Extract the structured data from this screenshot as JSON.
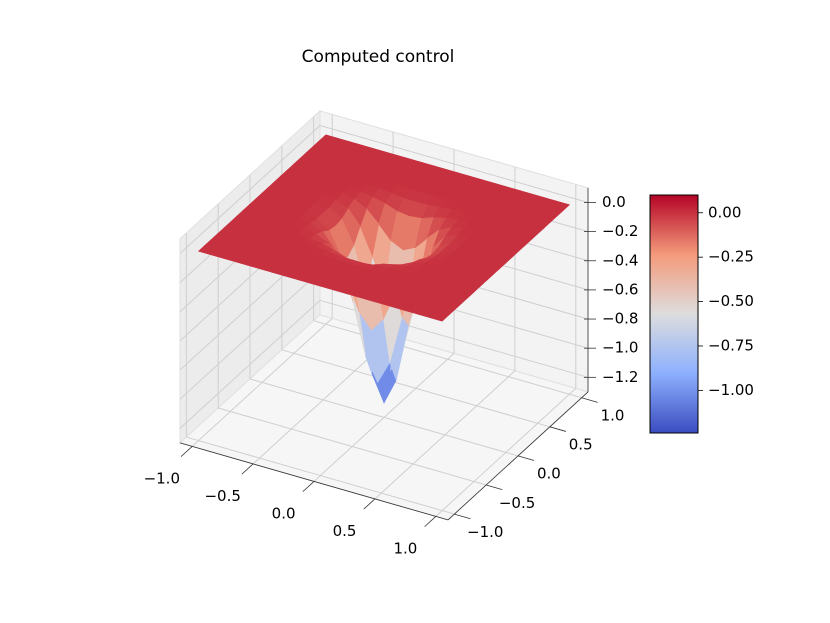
{
  "chart_data": {
    "type": "surface",
    "title": "Computed control",
    "colormap": "coolwarm",
    "grid": true,
    "x": [
      -1,
      -0.9,
      -0.8,
      -0.7,
      -0.6,
      -0.5,
      -0.4,
      -0.3,
      -0.2,
      -0.1,
      0,
      0.1,
      0.2,
      0.3,
      0.4,
      0.5,
      0.6,
      0.7,
      0.8,
      0.9,
      1
    ],
    "y": [
      -1,
      -0.9,
      -0.8,
      -0.7,
      -0.6,
      -0.5,
      -0.4,
      -0.3,
      -0.2,
      -0.1,
      0,
      0.1,
      0.2,
      0.3,
      0.4,
      0.5,
      0.6,
      0.7,
      0.8,
      0.9,
      1
    ],
    "z": [
      [
        0,
        0,
        0,
        0,
        0,
        0,
        0,
        0,
        0,
        0,
        0,
        0,
        0,
        0,
        0,
        0,
        0,
        0,
        0,
        0,
        0
      ],
      [
        0,
        0,
        0,
        0,
        0,
        0,
        0,
        0,
        0,
        0,
        0,
        0,
        0,
        0,
        0,
        0,
        0,
        0,
        0,
        0,
        0
      ],
      [
        0,
        0,
        0,
        0,
        0,
        0,
        0,
        0,
        0,
        0,
        0,
        0,
        0,
        0,
        0,
        0,
        0,
        0,
        0,
        0,
        0
      ],
      [
        0,
        0,
        0,
        0,
        0,
        0,
        0,
        0,
        0,
        0,
        0,
        0,
        0,
        0,
        0,
        0,
        0,
        0,
        0,
        0,
        0
      ],
      [
        0,
        0,
        0,
        0,
        0,
        0,
        0,
        0,
        0,
        0,
        0,
        0,
        0,
        0,
        0,
        0,
        0,
        0,
        0,
        0,
        0
      ],
      [
        0,
        0,
        0,
        0,
        0,
        0,
        0,
        0,
        -0.01,
        -0.02,
        -0.02,
        -0.02,
        -0.01,
        0,
        0,
        0,
        0,
        0,
        0,
        0,
        0
      ],
      [
        0,
        0,
        0,
        0,
        0,
        0,
        -0.01,
        -0.02,
        -0.04,
        -0.07,
        -0.08,
        -0.07,
        -0.04,
        -0.02,
        -0.01,
        0,
        0,
        0,
        0,
        0,
        0
      ],
      [
        0,
        0,
        0,
        0,
        0,
        0,
        -0.02,
        -0.06,
        -0.14,
        -0.23,
        -0.27,
        -0.23,
        -0.14,
        -0.06,
        -0.02,
        0,
        0,
        0,
        0,
        0,
        0
      ],
      [
        0,
        0,
        0,
        0,
        0,
        -0.01,
        -0.04,
        -0.14,
        -0.32,
        -0.52,
        -0.62,
        -0.52,
        -0.32,
        -0.14,
        -0.04,
        -0.01,
        0,
        0,
        0,
        0,
        0
      ],
      [
        0,
        0,
        0,
        0,
        0,
        -0.02,
        -0.07,
        -0.23,
        -0.52,
        -0.86,
        -1.02,
        -0.86,
        -0.52,
        -0.23,
        -0.07,
        -0.02,
        0,
        0,
        0,
        0,
        0
      ],
      [
        0,
        0,
        0,
        0,
        0,
        -0.02,
        -0.08,
        -0.27,
        -0.62,
        -1.02,
        -1.2,
        -1.02,
        -0.62,
        -0.27,
        -0.08,
        -0.02,
        0,
        0,
        0,
        0,
        0
      ],
      [
        0,
        0,
        0,
        0,
        0,
        -0.02,
        -0.07,
        -0.23,
        -0.52,
        -0.86,
        -1.02,
        -0.86,
        -0.52,
        -0.23,
        -0.07,
        -0.02,
        0,
        0,
        0,
        0,
        0
      ],
      [
        0,
        0,
        0,
        0,
        0,
        -0.01,
        -0.04,
        -0.14,
        -0.32,
        -0.52,
        -0.62,
        -0.52,
        -0.32,
        -0.14,
        -0.04,
        -0.01,
        0,
        0,
        0,
        0,
        0
      ],
      [
        0,
        0,
        0,
        0,
        0,
        0,
        -0.02,
        -0.06,
        -0.14,
        -0.23,
        -0.27,
        -0.23,
        -0.14,
        -0.06,
        -0.02,
        0,
        0,
        0,
        0,
        0,
        0
      ],
      [
        0,
        0,
        0,
        0,
        0,
        0,
        -0.01,
        -0.02,
        -0.04,
        -0.07,
        -0.08,
        -0.07,
        -0.04,
        -0.02,
        -0.01,
        0,
        0,
        0,
        0,
        0,
        0
      ],
      [
        0,
        0,
        0,
        0,
        0,
        0,
        0,
        0,
        -0.01,
        -0.02,
        -0.02,
        -0.02,
        -0.01,
        0,
        0,
        0,
        0,
        0,
        0,
        0,
        0
      ],
      [
        0,
        0,
        0,
        0,
        0,
        0,
        0,
        0,
        0,
        0,
        0,
        0,
        0,
        0,
        0,
        0,
        0,
        0,
        0,
        0,
        0
      ],
      [
        0,
        0,
        0,
        0,
        0,
        0,
        0,
        0,
        0,
        0,
        0,
        0,
        0,
        0,
        0,
        0,
        0,
        0,
        0,
        0,
        0
      ],
      [
        0,
        0,
        0,
        0,
        0,
        0,
        0,
        0,
        0,
        0,
        0,
        0,
        0,
        0,
        0,
        0,
        0,
        0,
        0,
        0,
        0
      ],
      [
        0,
        0,
        0,
        0,
        0,
        0,
        0,
        0,
        0,
        0,
        0,
        0,
        0,
        0,
        0,
        0,
        0,
        0,
        0,
        0,
        0
      ],
      [
        0,
        0,
        0,
        0,
        0,
        0,
        0,
        0,
        0,
        0,
        0,
        0,
        0,
        0,
        0,
        0,
        0,
        0,
        0,
        0,
        0
      ]
    ],
    "xlim": [
      -1.1,
      1.1
    ],
    "ylim": [
      -1.1,
      1.1
    ],
    "zlim": [
      -1.3,
      0.1
    ],
    "xticks": [
      {
        "value": -1,
        "label": "−1.0"
      },
      {
        "value": -0.5,
        "label": "−0.5"
      },
      {
        "value": 0,
        "label": "0.0"
      },
      0.5,
      {
        "value": 1,
        "label": "1.0"
      }
    ],
    "yticks": [
      {
        "value": -1,
        "label": "−1.0"
      },
      {
        "value": -0.5,
        "label": "−0.5"
      },
      {
        "value": 0,
        "label": "0.0"
      },
      0.5,
      {
        "value": 1,
        "label": "1.0"
      }
    ],
    "zticks": [
      {
        "value": 0,
        "label": "0.0"
      },
      {
        "value": -0.2,
        "label": "−0.2"
      },
      {
        "value": -0.4,
        "label": "−0.4"
      },
      {
        "value": -0.6,
        "label": "−0.6"
      },
      {
        "value": -0.8,
        "label": "−0.8"
      },
      {
        "value": -1.0,
        "label": "−1.0"
      },
      {
        "value": -1.2,
        "label": "−1.2"
      }
    ],
    "colorbar": {
      "clim": [
        -1.24,
        0.1
      ],
      "ticks": [
        {
          "value": 0,
          "label": "0.00"
        },
        {
          "value": -0.25,
          "label": "−0.25"
        },
        {
          "value": -0.5,
          "label": "−0.50"
        },
        {
          "value": -0.75,
          "label": "−0.75"
        },
        {
          "value": -1.0,
          "label": "−1.00"
        }
      ]
    }
  }
}
